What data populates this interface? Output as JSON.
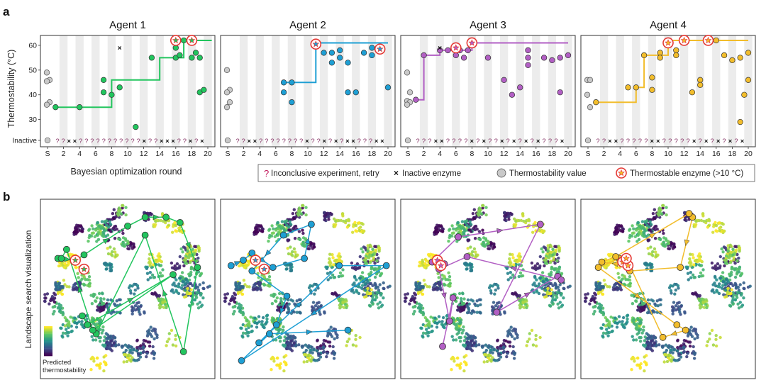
{
  "panel_labels": [
    "a",
    "b"
  ],
  "colors": {
    "agents": [
      "#22c55e",
      "#1e9fd4",
      "#b25fc4",
      "#f2bd2c"
    ],
    "stripe": "#ececec",
    "grey_point": "#c9c9c9",
    "star_ring": "#e53935",
    "frame": "#333333",
    "viridis": [
      "#440154",
      "#3b528b",
      "#21908d",
      "#5dc863",
      "#fde725"
    ]
  },
  "legend": {
    "inconclusive": "Inconclusive experiment, retry",
    "inactive": "Inactive enzyme",
    "thermo_value": "Thermostability value",
    "thermostable": "Thermostable enzyme (>10 °C)"
  },
  "landscape": {
    "ylabel": "Landscape search visualization",
    "colorbar_label_1": "Predicted",
    "colorbar_label_2": "thermostability"
  },
  "chart_data": {
    "type": "scatter",
    "ylabel": "Thermostability (°C)",
    "xlabel": "Bayesian optimization round",
    "ylim": [
      19,
      64
    ],
    "yticks": [
      30,
      40,
      50,
      60
    ],
    "inactive_label": "Inactive",
    "xticks": [
      "S",
      "2",
      "4",
      "6",
      "8",
      "10",
      "12",
      "14",
      "16",
      "18",
      "20"
    ],
    "agents": [
      {
        "name": "Agent 1",
        "color": "#22c55e",
        "starting": [
          49,
          46,
          45.5,
          37,
          36
        ],
        "best_line": [
          [
            1,
            35
          ],
          [
            8,
            35
          ],
          [
            8,
            46
          ],
          [
            14,
            46
          ],
          [
            14,
            55
          ],
          [
            17,
            55
          ],
          [
            17,
            62
          ],
          [
            20.5,
            62
          ]
        ],
        "points": [
          [
            1,
            35
          ],
          [
            4,
            35
          ],
          [
            7,
            41
          ],
          [
            7,
            46
          ],
          [
            8,
            40
          ],
          [
            9,
            43
          ],
          [
            11,
            27
          ],
          [
            13,
            55
          ],
          [
            16,
            55
          ],
          [
            16,
            59
          ],
          [
            16.5,
            56
          ],
          [
            17,
            62
          ],
          [
            18,
            62
          ],
          [
            18,
            55
          ],
          [
            18.5,
            57
          ],
          [
            19,
            55
          ],
          [
            19,
            41
          ],
          [
            19.5,
            42
          ]
        ],
        "stars": [
          [
            16,
            62
          ],
          [
            18,
            62
          ]
        ],
        "inactive": [
          [
            9,
            59
          ]
        ],
        "inactive_row": "??!xx!?????!??!????!x!??!x!x!x!!??!x!?!x"
      },
      {
        "name": "Agent 2",
        "color": "#1e9fd4",
        "starting": [
          50,
          42,
          41,
          37,
          35
        ],
        "best_line": [
          [
            7,
            45
          ],
          [
            11,
            45
          ],
          [
            11,
            61
          ],
          [
            20,
            61
          ]
        ],
        "points": [
          [
            7,
            45
          ],
          [
            7,
            41
          ],
          [
            8,
            45
          ],
          [
            8,
            37
          ],
          [
            11,
            61
          ],
          [
            12,
            57
          ],
          [
            13,
            53
          ],
          [
            13,
            57
          ],
          [
            14,
            55
          ],
          [
            14,
            58
          ],
          [
            15,
            53
          ],
          [
            15,
            41
          ],
          [
            16,
            41
          ],
          [
            17,
            57
          ],
          [
            18,
            56
          ],
          [
            18,
            59
          ],
          [
            20,
            43
          ]
        ],
        "stars": [
          [
            11,
            60.5
          ],
          [
            19,
            58.5
          ]
        ],
        "inactive": [],
        "inactive_row": "!??!xx!??????!?!?!x!!??!x!?!x!?!x!x!??!?!xx"
      },
      {
        "name": "Agent 3",
        "color": "#b25fc4",
        "starting": [
          49,
          41,
          37.5,
          37,
          36
        ],
        "best_line": [
          [
            1,
            38
          ],
          [
            2,
            38
          ],
          [
            2,
            56
          ],
          [
            4,
            56
          ],
          [
            4,
            58
          ],
          [
            8,
            58
          ],
          [
            8,
            61
          ],
          [
            20,
            61
          ]
        ],
        "points": [
          [
            1,
            38
          ],
          [
            2,
            56
          ],
          [
            4,
            58
          ],
          [
            5,
            58
          ],
          [
            6,
            56
          ],
          [
            6.5,
            58
          ],
          [
            7,
            55
          ],
          [
            7.5,
            58
          ],
          [
            8,
            61
          ],
          [
            10,
            55
          ],
          [
            12,
            46
          ],
          [
            13,
            40
          ],
          [
            14,
            43
          ],
          [
            15,
            58
          ],
          [
            15,
            55
          ],
          [
            15,
            52
          ],
          [
            17,
            55
          ],
          [
            18,
            54
          ],
          [
            19,
            41
          ],
          [
            19,
            55
          ],
          [
            20,
            56
          ]
        ],
        "stars": [
          [
            6,
            59
          ],
          [
            8,
            61
          ]
        ],
        "inactive": [
          [
            4,
            59
          ]
        ],
        "inactive_row": "!???x!x!??!?!?!x!?!x!??!x!?x!?!x!?!x!??!?!x"
      },
      {
        "name": "Agent 4",
        "color": "#f2bd2c",
        "starting": [
          46,
          46,
          40,
          35
        ],
        "best_line": [
          [
            1,
            37
          ],
          [
            6,
            37
          ],
          [
            6,
            43
          ],
          [
            7,
            43
          ],
          [
            7,
            56
          ],
          [
            10,
            56
          ],
          [
            10,
            62
          ],
          [
            20,
            62
          ]
        ],
        "points": [
          [
            1,
            37
          ],
          [
            5,
            43
          ],
          [
            6,
            43
          ],
          [
            7,
            56
          ],
          [
            8,
            47
          ],
          [
            8,
            42
          ],
          [
            9,
            57
          ],
          [
            9,
            55
          ],
          [
            10,
            62
          ],
          [
            10,
            60
          ],
          [
            11,
            58
          ],
          [
            11,
            56
          ],
          [
            12,
            62
          ],
          [
            13,
            41
          ],
          [
            14,
            46
          ],
          [
            14,
            44
          ],
          [
            15,
            62
          ],
          [
            16,
            62
          ],
          [
            17,
            56
          ],
          [
            18,
            54
          ],
          [
            19,
            29
          ],
          [
            19,
            55
          ],
          [
            19.5,
            40
          ],
          [
            20,
            57
          ],
          [
            20,
            46
          ]
        ],
        "stars": [
          [
            10,
            61
          ],
          [
            12,
            62
          ],
          [
            15,
            62
          ]
        ],
        "inactive": [],
        "inactive_row": "!??!x!x!?????!x!x!???!?!?!x!?!x!?!x!?!x!?!x"
      }
    ]
  }
}
